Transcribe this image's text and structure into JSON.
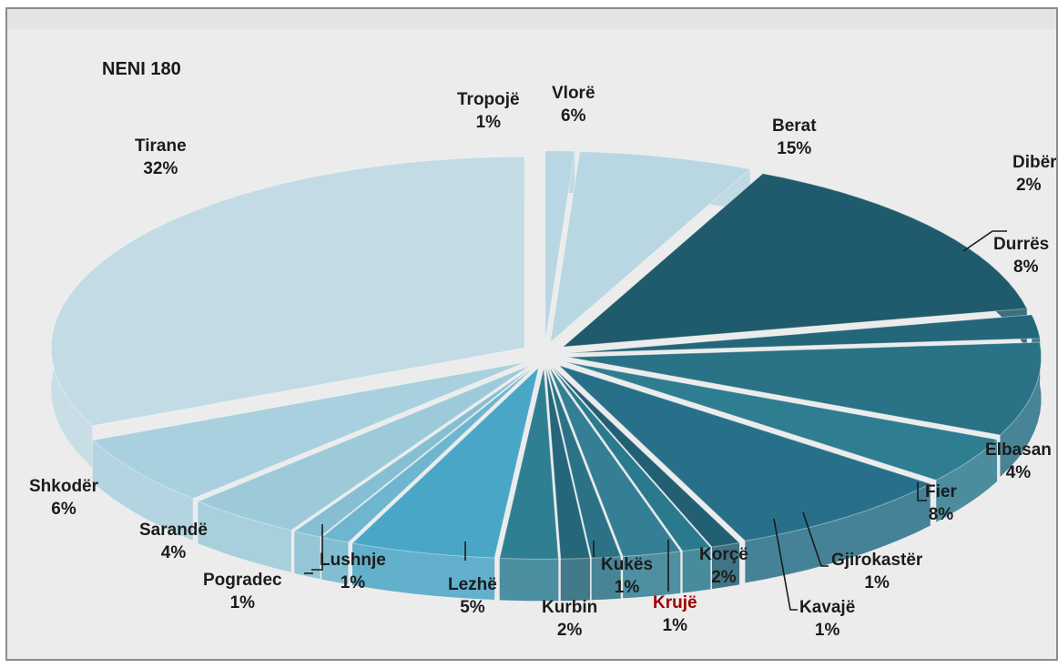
{
  "chart_data": {
    "type": "pie",
    "title": "NENI  180",
    "slices": [
      {
        "label": "Tirane",
        "pct": "32%",
        "value": 32
      },
      {
        "label": "Tropojë",
        "pct": "1%",
        "value": 1
      },
      {
        "label": "Vlorë",
        "pct": "6%",
        "value": 6
      },
      {
        "label": "Berat",
        "pct": "15%",
        "value": 15
      },
      {
        "label": "Dibër",
        "pct": "2%",
        "value": 2
      },
      {
        "label": "Durrës",
        "pct": "8%",
        "value": 8
      },
      {
        "label": "Elbasan",
        "pct": "4%",
        "value": 4
      },
      {
        "label": "Fier",
        "pct": "8%",
        "value": 8
      },
      {
        "label": "Gjirokastër",
        "pct": "1%",
        "value": 1
      },
      {
        "label": "Kavajë",
        "pct": "1%",
        "value": 1
      },
      {
        "label": "Korçë",
        "pct": "2%",
        "value": 2
      },
      {
        "label": "Krujë",
        "pct": "1%",
        "value": 1
      },
      {
        "label": "Kukës",
        "pct": "1%",
        "value": 1
      },
      {
        "label": "Kurbin",
        "pct": "2%",
        "value": 2
      },
      {
        "label": "Lezhë",
        "pct": "5%",
        "value": 5
      },
      {
        "label": "Lushnje",
        "pct": "1%",
        "value": 1
      },
      {
        "label": "Pogradec",
        "pct": "1%",
        "value": 1
      },
      {
        "label": "Sarandë",
        "pct": "4%",
        "value": 4
      },
      {
        "label": "Shkodër",
        "pct": "6%",
        "value": 6
      }
    ],
    "colors": {
      "light": "#c9dde6",
      "mid": "#5fa3bd",
      "teal": "#2f7f93",
      "dark": "#1d5566"
    }
  }
}
